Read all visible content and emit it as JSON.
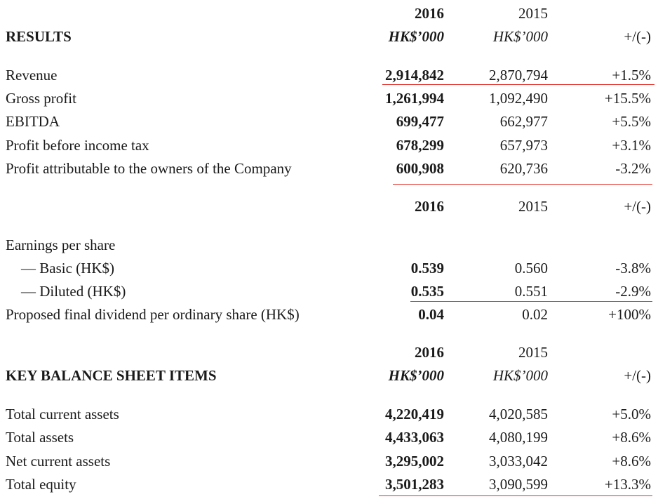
{
  "results": {
    "header": {
      "y2016": "2016",
      "y2015": "2015",
      "title": "RESULTS",
      "unit2016": "HK$’000",
      "unit2015": "HK$’000",
      "change": "+/(-)"
    },
    "rows": [
      {
        "label": "Revenue",
        "v2016": "2,914,842",
        "v2015": "2,870,794",
        "change": "+1.5%"
      },
      {
        "label": "Gross profit",
        "v2016": "1,261,994",
        "v2015": "1,092,490",
        "change": "+15.5%"
      },
      {
        "label": "EBITDA",
        "v2016": "699,477",
        "v2015": "662,977",
        "change": "+5.5%"
      },
      {
        "label": "Profit before income tax",
        "v2016": "678,299",
        "v2015": "657,973",
        "change": "+3.1%"
      },
      {
        "label": "Profit attributable to the owners of the Company",
        "v2016": "600,908",
        "v2015": "620,736",
        "change": "-3.2%"
      }
    ]
  },
  "per_share": {
    "header": {
      "y2016": "2016",
      "y2015": "2015",
      "change": "+/(-)"
    },
    "eps_label": "Earnings per share",
    "rows": [
      {
        "label": "— Basic (HK$)",
        "v2016": "0.539",
        "v2015": "0.560",
        "change": "-3.8%"
      },
      {
        "label": "— Diluted (HK$)",
        "v2016": "0.535",
        "v2015": "0.551",
        "change": "-2.9%"
      },
      {
        "label": "Proposed final dividend per ordinary share (HK$)",
        "v2016": "0.04",
        "v2015": "0.02",
        "change": "+100%"
      }
    ]
  },
  "balance_sheet": {
    "header": {
      "y2016": "2016",
      "y2015": "2015",
      "title": "KEY BALANCE SHEET ITEMS",
      "unit2016": "HK$’000",
      "unit2015": "HK$’000",
      "change": "+/(-)"
    },
    "rows": [
      {
        "label": "Total current assets",
        "v2016": "4,220,419",
        "v2015": "4,020,585",
        "change": "+5.0%"
      },
      {
        "label": "Total assets",
        "v2016": "4,433,063",
        "v2015": "4,080,199",
        "change": "+8.6%"
      },
      {
        "label": "Net current assets",
        "v2016": "3,295,002",
        "v2015": "3,033,042",
        "change": "+8.6%"
      },
      {
        "label": "Total equity",
        "v2016": "3,501,283",
        "v2015": "3,090,599",
        "change": "+13.3%"
      }
    ]
  },
  "colors": {
    "rule": "#e0302a",
    "text": "#1a1a1a"
  }
}
